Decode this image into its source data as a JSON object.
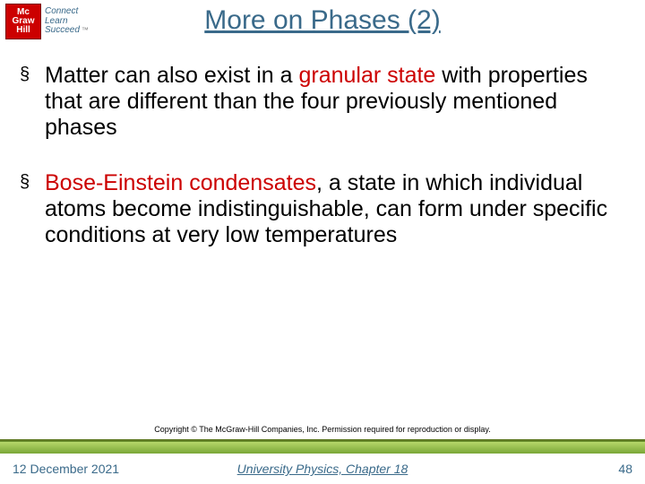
{
  "logo": {
    "mark_lines": {
      "l1": "Mc",
      "l2": "Graw",
      "l3": "Hill"
    },
    "tag_lines": {
      "l1": "Connect",
      "l2": "Learn",
      "l3": "Succeed"
    },
    "tm": "™"
  },
  "title": "More on Phases (2)",
  "bullets": [
    {
      "pre": "Matter can also exist in a ",
      "emph": "granular state",
      "post": " with properties that are different than the four previously mentioned phases"
    },
    {
      "pre": "",
      "emph": "Bose-Einstein condensates",
      "post": ", a state in which individual atoms become indistinguishable, can form under specific conditions at very low temperatures"
    }
  ],
  "copyright": "Copyright © The McGraw-Hill Companies, Inc. Permission required for reproduction or display.",
  "footer": {
    "date": "12 December 2021",
    "center": "University Physics, Chapter 18",
    "page": "48"
  },
  "colors": {
    "accent": "#3a6a8a",
    "emph": "#cc0000",
    "bar_top": "#b7d86a",
    "bar_bottom": "#7aa637"
  }
}
